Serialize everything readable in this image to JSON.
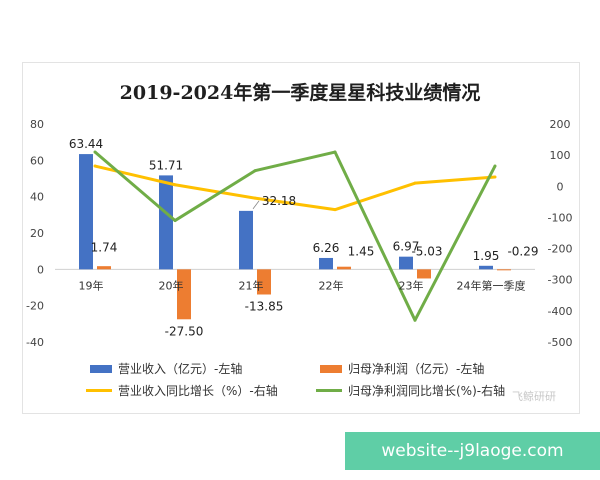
{
  "title": "2019-2024年第一季度星星科技业绩情况",
  "watermark": "飞鲸研研",
  "banner_text": "website--j9laoge.com",
  "chart_data": {
    "type": "bar",
    "categories": [
      "19年",
      "20年",
      "21年",
      "22年",
      "23年",
      "24年第一季度"
    ],
    "left_axis": {
      "ticks": [
        "80",
        "60",
        "40",
        "20",
        "0",
        "-20",
        "-40"
      ],
      "ylim": [
        -40,
        80
      ]
    },
    "right_axis": {
      "ticks": [
        "200",
        "100",
        "0",
        "-100",
        "-200",
        "-300",
        "-400",
        "-500"
      ],
      "ylim": [
        -500,
        200
      ]
    },
    "series": [
      {
        "name": "营业收入（亿元）-左轴",
        "type": "bar",
        "axis": "left",
        "color": "#4472c4",
        "values": [
          63.44,
          51.71,
          32.18,
          6.26,
          6.97,
          1.95
        ],
        "labels": [
          "63.44",
          "51.71",
          "32.18",
          "6.26",
          "6.97",
          "1.95"
        ]
      },
      {
        "name": "归母净利润（亿元）-左轴",
        "type": "bar",
        "axis": "left",
        "color": "#ed7d31",
        "values": [
          1.74,
          -27.5,
          -13.85,
          1.45,
          -5.03,
          -0.29
        ],
        "labels": [
          "1.74",
          "-27.50",
          "-13.85",
          "1.45",
          "-5.03",
          "-0.29"
        ]
      },
      {
        "name": "营业收入同比增长（%）-右轴",
        "type": "line",
        "axis": "right",
        "color": "#ffc000",
        "values": [
          65,
          5,
          -38,
          -75,
          10,
          30
        ]
      },
      {
        "name": "归母净利润同比增长(%)-右轴",
        "type": "line",
        "axis": "right",
        "color": "#70ad47",
        "values": [
          110,
          -110,
          50,
          110,
          -430,
          65
        ]
      }
    ],
    "grid": false,
    "legend": "bottom"
  }
}
